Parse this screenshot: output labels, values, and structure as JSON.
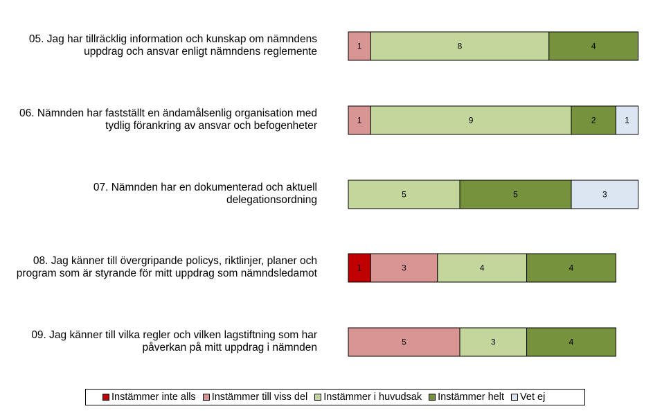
{
  "chart_data": {
    "type": "bar",
    "orientation": "horizontal",
    "stacked": true,
    "categories": [
      [
        "05. Jag har tillräcklig information och kunskap om nämndens",
        "uppdrag och ansvar enligt nämndens reglemente"
      ],
      [
        "06. Nämnden har fastställt en ändamålsenlig organisation med",
        "tydlig förankring av ansvar och befogenheter"
      ],
      [
        "07. Nämnden har en dokumenterad och aktuell",
        "delegationsordning"
      ],
      [
        "08. Jag känner till övergripande policys, riktlinjer, planer och",
        "program som är styrande för mitt uppdrag som nämndsledamot"
      ],
      [
        "09. Jag känner till vilka regler och vilken lagstiftning som har",
        "påverkan på mitt uppdrag i nämnden"
      ]
    ],
    "series": [
      {
        "name": "Instämmer inte alls",
        "color": "#c00000",
        "values": [
          0,
          0,
          0,
          1,
          0
        ]
      },
      {
        "name": "Instämmer till viss del",
        "color": "#d99594",
        "values": [
          1,
          1,
          0,
          3,
          5
        ]
      },
      {
        "name": "Instämmer i huvudsak",
        "color": "#c3d69b",
        "values": [
          8,
          9,
          5,
          4,
          3
        ]
      },
      {
        "name": "Instämmer helt",
        "color": "#76923c",
        "values": [
          4,
          2,
          5,
          4,
          4
        ]
      },
      {
        "name": "Vet ej",
        "color": "#dce6f2",
        "values": [
          0,
          1,
          3,
          0,
          0
        ]
      }
    ],
    "legend": "bottom",
    "grid": false
  }
}
